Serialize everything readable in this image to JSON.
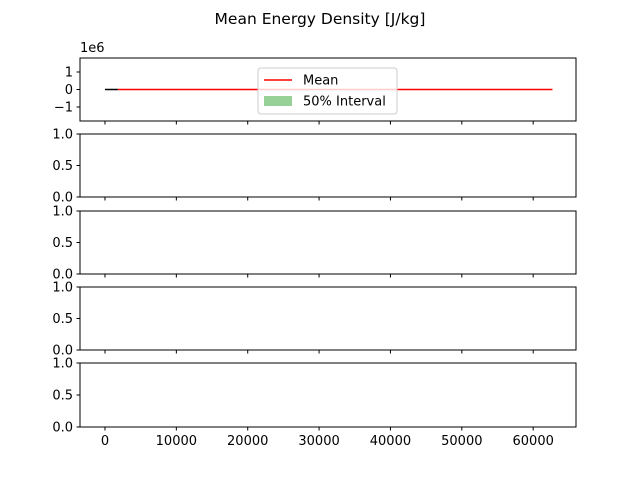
{
  "chart_data": {
    "type": "line",
    "title": "Mean Energy Density [J/kg]",
    "x_ticks": [
      0,
      10000,
      20000,
      30000,
      40000,
      50000,
      60000
    ],
    "x_tick_labels": [
      "0",
      "10000",
      "20000",
      "30000",
      "40000",
      "50000",
      "60000"
    ],
    "xlim": [
      -3500,
      66000
    ],
    "panels": [
      {
        "ylim": [
          -1.8,
          1.8
        ],
        "y_ticks": [
          1,
          0,
          -1
        ],
        "y_tick_labels": [
          "1",
          "0",
          "−1"
        ],
        "offset_label": "1e6",
        "legend": {
          "placement": "top-center",
          "entries": [
            {
              "label": "Mean",
              "kind": "line",
              "color": "#ff0000"
            },
            {
              "label": "50% Interval",
              "kind": "patch",
              "color": "#98d198"
            }
          ]
        },
        "series": [
          {
            "label_ref": "Mean",
            "color": "#ff0000",
            "x": [
              1800,
              62700
            ],
            "y": [
              0,
              0
            ]
          },
          {
            "color": "#000000",
            "x": [
              0,
              1800
            ],
            "y": [
              0,
              0
            ]
          }
        ]
      },
      {
        "ylim": [
          0,
          1
        ],
        "y_ticks": [
          1,
          0.5,
          0
        ],
        "y_tick_labels": [
          "1.0",
          "0.5",
          "0.0"
        ],
        "series": []
      },
      {
        "ylim": [
          0,
          1
        ],
        "y_ticks": [
          1,
          0.5,
          0
        ],
        "y_tick_labels": [
          "1.0",
          "0.5",
          "0.0"
        ],
        "series": []
      },
      {
        "ylim": [
          0,
          1
        ],
        "y_ticks": [
          1,
          0.5,
          0
        ],
        "y_tick_labels": [
          "1.0",
          "0.5",
          "0.0"
        ],
        "series": []
      },
      {
        "ylim": [
          0,
          1
        ],
        "y_ticks": [
          1,
          0.5,
          0
        ],
        "y_tick_labels": [
          "1.0",
          "0.5",
          "0.0"
        ],
        "series": []
      }
    ]
  }
}
